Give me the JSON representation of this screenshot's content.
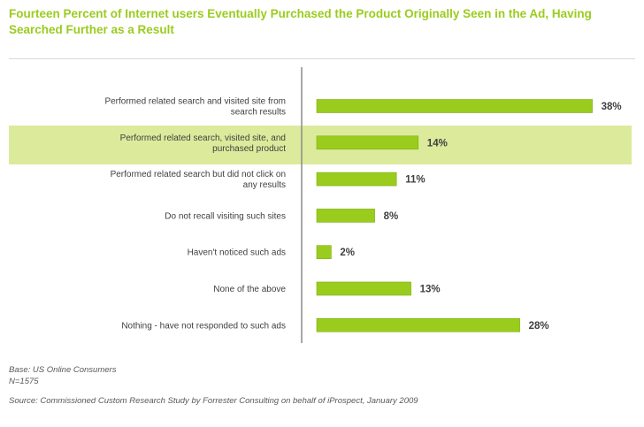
{
  "chart_data": {
    "type": "bar",
    "orientation": "horizontal",
    "title": "Fourteen Percent of Internet users Eventually Purchased the Product Originally Seen in the Ad, Having Searched Further as a Result",
    "categories": [
      [
        "Performed related search and visited site from",
        "search results"
      ],
      [
        "Performed related search, visited site, and",
        "purchased product"
      ],
      [
        "Performed related search but did not click on",
        "any results"
      ],
      [
        "Do not recall visiting such sites"
      ],
      [
        "Haven't noticed such ads"
      ],
      [
        "None of the above"
      ],
      [
        "Nothing - have not responded to such ads"
      ]
    ],
    "values": [
      38,
      14,
      11,
      8,
      2,
      13,
      28
    ],
    "value_labels": [
      "38%",
      "14%",
      "11%",
      "8%",
      "2%",
      "13%",
      "28%"
    ],
    "highlighted_index": 1,
    "xlim": [
      0,
      40
    ],
    "unit": "%",
    "grid": false,
    "colors": {
      "bar": "#9ACC1E",
      "bar_stroke": "#7FAE12",
      "highlight": "#DCEA9C",
      "title": "#9ACC1E",
      "axis": "#8c8c8c",
      "text": "#3f3f3f"
    }
  },
  "footnotes": {
    "base": "Base: US Online Consumers",
    "n": "N=1575",
    "source": "Source: Commissioned Custom Research Study by Forrester Consulting on behalf of iProspect, January 2009"
  }
}
